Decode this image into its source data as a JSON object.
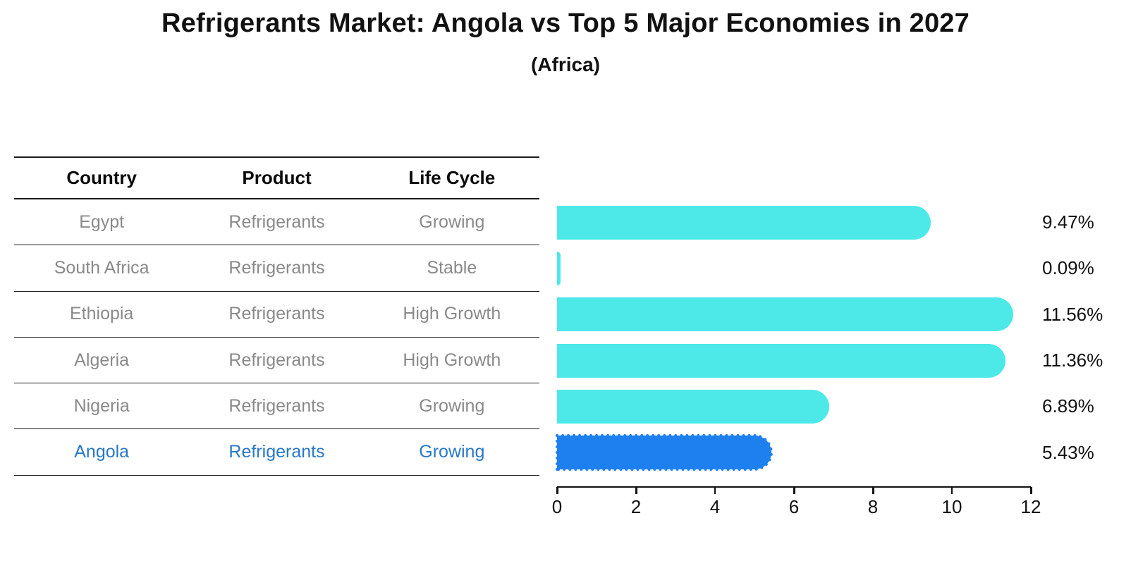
{
  "chart_data": {
    "type": "bar",
    "orientation": "horizontal",
    "title": "Refrigerants Market: Angola vs Top 5 Major Economies in 2027",
    "subtitle": "(Africa)",
    "categories": [
      "Egypt",
      "South Africa",
      "Ethiopia",
      "Algeria",
      "Nigeria",
      "Angola"
    ],
    "values": [
      9.47,
      0.09,
      11.56,
      11.36,
      6.89,
      5.43
    ],
    "value_labels": [
      "9.47%",
      "0.09%",
      "11.56%",
      "11.36%",
      "6.89%",
      "5.43%"
    ],
    "xlim": [
      0,
      12
    ],
    "xticks": [
      "0",
      "2",
      "4",
      "6",
      "8",
      "10",
      "12"
    ],
    "grid": false,
    "legend": "none",
    "bar_color": "#4de8e8",
    "highlight_color": "#1e80ee",
    "highlight_index": 5,
    "highlight_text_color": "#2878c8",
    "row_text_color": "#8a8a8a",
    "table": {
      "headers": [
        "Country",
        "Product",
        "Life Cycle"
      ],
      "rows": [
        [
          "Egypt",
          "Refrigerants",
          "Growing"
        ],
        [
          "South Africa",
          "Refrigerants",
          "Stable"
        ],
        [
          "Ethiopia",
          "Refrigerants",
          "High Growth"
        ],
        [
          "Algeria",
          "Refrigerants",
          "High Growth"
        ],
        [
          "Nigeria",
          "Refrigerants",
          "Growing"
        ],
        [
          "Angola",
          "Refrigerants",
          "Growing"
        ]
      ]
    }
  }
}
